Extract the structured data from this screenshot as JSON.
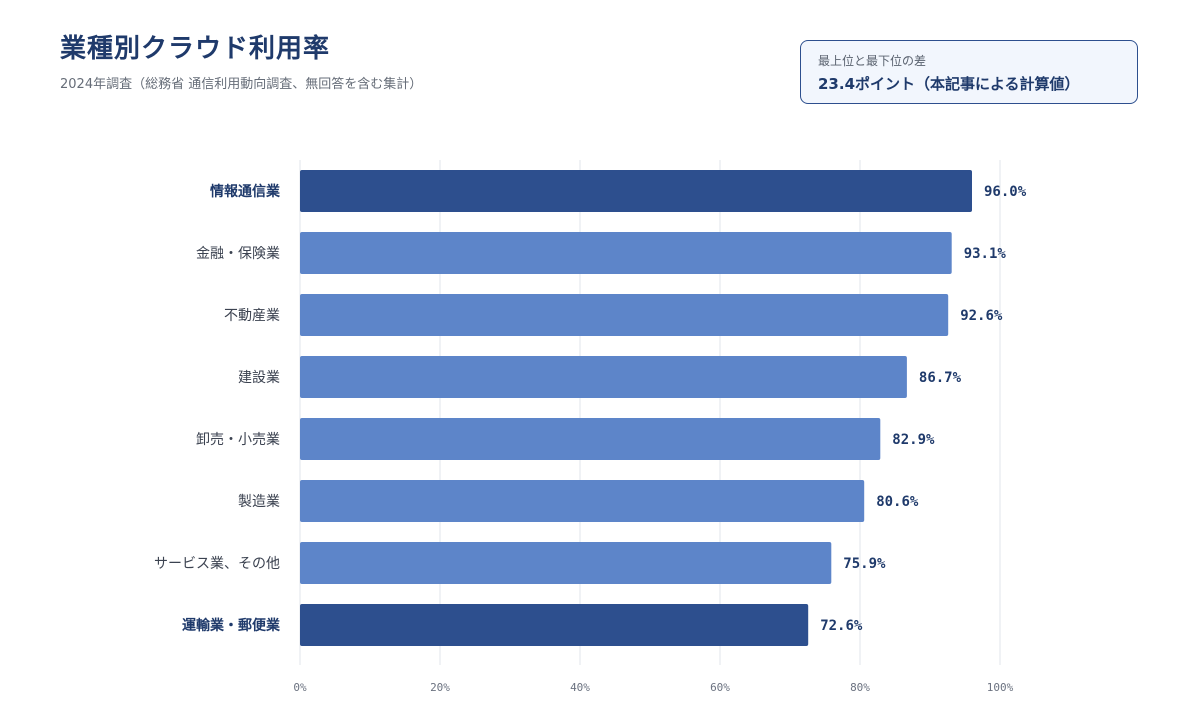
{
  "chart_data": {
    "type": "bar",
    "orientation": "horizontal",
    "title": "業種別クラウド利用率",
    "subtitle": "2024年調査（総務省 通信利用動向調査、無回答を含む集計）",
    "categories": [
      "情報通信業",
      "金融・保険業",
      "不動産業",
      "建設業",
      "卸売・小売業",
      "製造業",
      "サービス業、その他",
      "運輸業・郵便業"
    ],
    "values": [
      96.0,
      93.1,
      92.6,
      86.7,
      82.9,
      80.6,
      75.9,
      72.6
    ],
    "value_labels": [
      "96.0%",
      "93.1%",
      "92.6%",
      "86.7%",
      "82.9%",
      "80.6%",
      "75.9%",
      "72.6%"
    ],
    "highlighted": [
      true,
      false,
      false,
      false,
      false,
      false,
      false,
      true
    ],
    "xlim": [
      0,
      100
    ],
    "xticks": [
      0,
      20,
      40,
      60,
      80,
      100
    ],
    "xtick_labels": [
      "0%",
      "20%",
      "40%",
      "60%",
      "80%",
      "100%"
    ],
    "grid": true,
    "colors": {
      "highlight": "#2d4f8e",
      "normal": "#5d85c9",
      "grid": "#eceef2"
    }
  },
  "callout": {
    "label": "最上位と最下位の差",
    "value": "23.4ポイント（本記事による計算値）"
  }
}
